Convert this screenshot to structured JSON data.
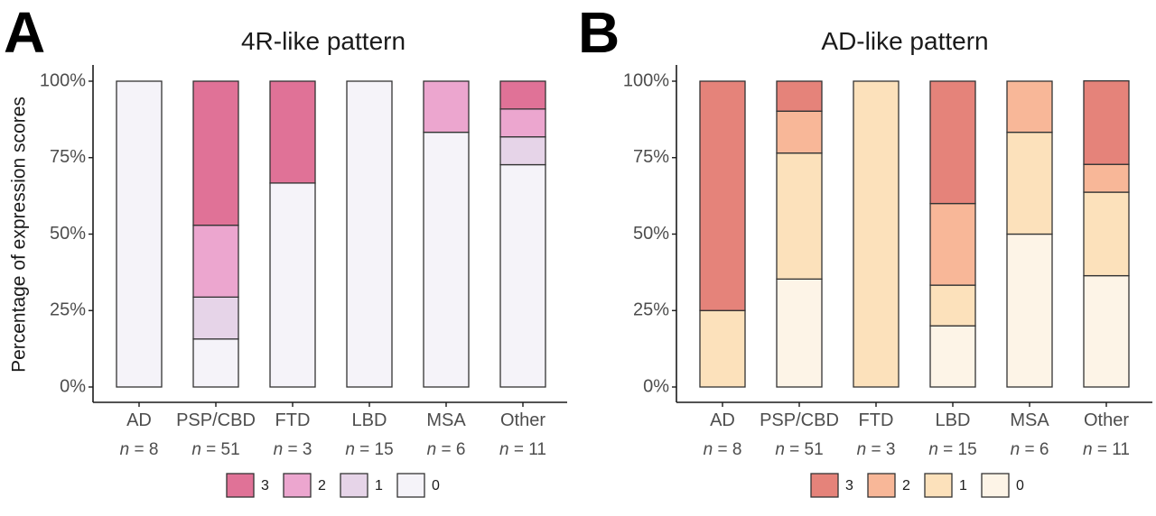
{
  "y_axis_title": "Percentage of expression scores",
  "chart_data": [
    {
      "type": "bar",
      "panel": "A",
      "title": "4R-like pattern",
      "ylabel": "Percentage of expression scores",
      "xlabel": "",
      "ylim": [
        0,
        100
      ],
      "yticks": [
        0,
        25,
        50,
        75,
        100
      ],
      "ytick_labels": [
        "0%",
        "25%",
        "50%",
        "75%",
        "100%"
      ],
      "stacked": true,
      "percent": true,
      "categories": [
        "AD",
        "PSP/CBD",
        "FTD",
        "LBD",
        "MSA",
        "Other"
      ],
      "n_labels": [
        "n = 8",
        "n = 51",
        "n = 3",
        "n = 15",
        "n = 6",
        "n = 11"
      ],
      "n_prefix": "n",
      "n_values": [
        "8",
        "51",
        "3",
        "15",
        "6",
        "11"
      ],
      "series": [
        {
          "name": "0",
          "color": "#f5f3f9",
          "values": [
            100,
            15.7,
            66.7,
            100,
            83.3,
            72.7
          ]
        },
        {
          "name": "1",
          "color": "#e6d4e8",
          "values": [
            0,
            13.7,
            0,
            0,
            0,
            9.1
          ]
        },
        {
          "name": "2",
          "color": "#eca6cf",
          "values": [
            0,
            23.5,
            0,
            0,
            16.7,
            9.1
          ]
        },
        {
          "name": "3",
          "color": "#e07297",
          "values": [
            0,
            47.1,
            33.3,
            0,
            0,
            9.1
          ]
        }
      ],
      "legend": {
        "position": "bottom",
        "order": [
          "3",
          "2",
          "1",
          "0"
        ]
      },
      "grid": false
    },
    {
      "type": "bar",
      "panel": "B",
      "title": "AD-like pattern",
      "ylabel": "",
      "xlabel": "",
      "ylim": [
        0,
        100
      ],
      "yticks": [
        0,
        25,
        50,
        75,
        100
      ],
      "ytick_labels": [
        "0%",
        "25%",
        "50%",
        "75%",
        "100%"
      ],
      "stacked": true,
      "percent": true,
      "categories": [
        "AD",
        "PSP/CBD",
        "FTD",
        "LBD",
        "MSA",
        "Other"
      ],
      "n_labels": [
        "n = 8",
        "n = 51",
        "n = 3",
        "n = 15",
        "n = 6",
        "n = 11"
      ],
      "n_prefix": "n",
      "n_values": [
        "8",
        "51",
        "3",
        "15",
        "6",
        "11"
      ],
      "series": [
        {
          "name": "0",
          "color": "#fdf4e7",
          "values": [
            0,
            35.3,
            0,
            20,
            50,
            36.4
          ]
        },
        {
          "name": "1",
          "color": "#fce1bb",
          "values": [
            25,
            41.2,
            100,
            13.3,
            33.3,
            27.3
          ]
        },
        {
          "name": "2",
          "color": "#f8b798",
          "values": [
            0,
            13.7,
            0,
            26.7,
            16.7,
            9.1
          ]
        },
        {
          "name": "3",
          "color": "#e5837a",
          "values": [
            75,
            9.8,
            0,
            40,
            0,
            27.3
          ]
        }
      ],
      "legend": {
        "position": "bottom",
        "order": [
          "3",
          "2",
          "1",
          "0"
        ]
      },
      "grid": false
    }
  ]
}
